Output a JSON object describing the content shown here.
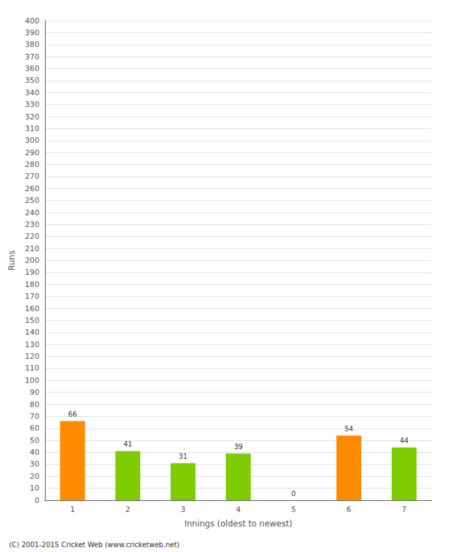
{
  "chart_data": {
    "type": "bar",
    "categories": [
      "1",
      "2",
      "3",
      "4",
      "5",
      "6",
      "7"
    ],
    "values": [
      66,
      41,
      31,
      39,
      0,
      54,
      44
    ],
    "colors": [
      "#FF8C00",
      "#7FCC00",
      "#7FCC00",
      "#7FCC00",
      "#7FCC00",
      "#FF8C00",
      "#7FCC00"
    ],
    "xlabel": "Innings (oldest to newest)",
    "ylabel": "Runs",
    "ylim": [
      0,
      400
    ],
    "yticks": [
      0,
      10,
      20,
      30,
      40,
      50,
      60,
      70,
      80,
      90,
      100,
      110,
      120,
      130,
      140,
      150,
      160,
      170,
      180,
      190,
      200,
      210,
      220,
      230,
      240,
      250,
      260,
      270,
      280,
      290,
      300,
      310,
      320,
      330,
      340,
      350,
      360,
      370,
      380,
      390,
      400
    ],
    "grid": true,
    "data_labels": true,
    "annotations": [
      "(C) 2001-2015 Cricket Web (www.cricketweb.net)"
    ]
  }
}
